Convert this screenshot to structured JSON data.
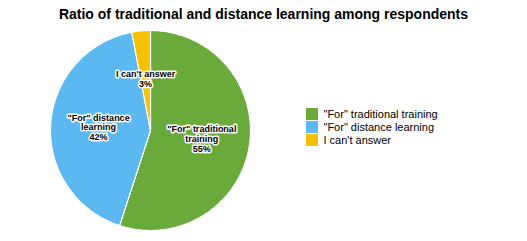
{
  "chart_data": {
    "type": "pie",
    "title": "Ratio of traditional and distance learning among respondents",
    "categories": [
      "\"For\" traditional training",
      "\"For\" distance learning",
      "I can't answer"
    ],
    "values": [
      55,
      42,
      3
    ],
    "value_labels": [
      "\"For\" traditional\ntraining\n55%",
      "\"For\" distance\nlearning\n42%",
      "I can't answer\n3%"
    ],
    "colors": [
      "#6aaa3a",
      "#5bb8f0",
      "#f5c100"
    ],
    "data_labels": true,
    "legend": "right"
  }
}
